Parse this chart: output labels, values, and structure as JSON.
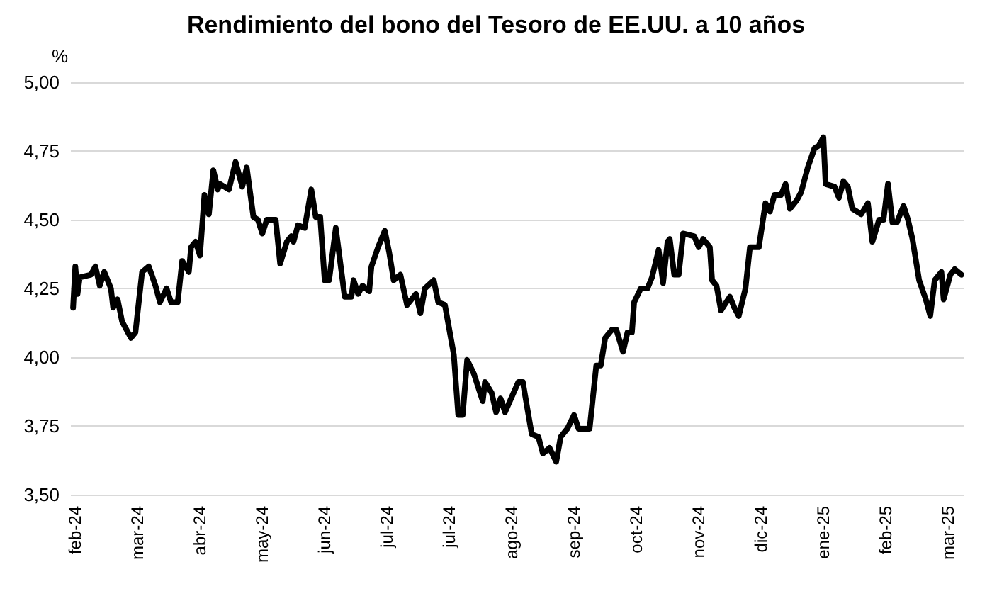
{
  "chart_data": {
    "type": "line",
    "title": "Rendimiento del bono del Tesoro de EE.UU. a 10 años",
    "ylabel": "%",
    "x": [
      "2024-02-12",
      "2024-02-13",
      "2024-02-14",
      "2024-02-15",
      "2024-02-20",
      "2024-02-22",
      "2024-02-24",
      "2024-02-26",
      "2024-02-29",
      "2024-03-01",
      "2024-03-03",
      "2024-03-05",
      "2024-03-09",
      "2024-03-11",
      "2024-03-14",
      "2024-03-17",
      "2024-03-20",
      "2024-03-22",
      "2024-03-25",
      "2024-03-27",
      "2024-03-30",
      "2024-04-01",
      "2024-04-04",
      "2024-04-05",
      "2024-04-07",
      "2024-04-09",
      "2024-04-11",
      "2024-04-13",
      "2024-04-15",
      "2024-04-17",
      "2024-04-18",
      "2024-04-22",
      "2024-04-25",
      "2024-04-28",
      "2024-04-30",
      "2024-05-03",
      "2024-05-05",
      "2024-05-07",
      "2024-05-09",
      "2024-05-13",
      "2024-05-15",
      "2024-05-18",
      "2024-05-20",
      "2024-05-21",
      "2024-05-23",
      "2024-05-26",
      "2024-05-29",
      "2024-05-31",
      "2024-06-02",
      "2024-06-04",
      "2024-06-06",
      "2024-06-09",
      "2024-06-13",
      "2024-06-16",
      "2024-06-17",
      "2024-06-19",
      "2024-06-21",
      "2024-06-24",
      "2024-06-25",
      "2024-06-28",
      "2024-07-01",
      "2024-07-03",
      "2024-07-05",
      "2024-07-08",
      "2024-07-11",
      "2024-07-15",
      "2024-07-17",
      "2024-07-19",
      "2024-07-23",
      "2024-07-25",
      "2024-07-28",
      "2024-08-01",
      "2024-08-03",
      "2024-08-05",
      "2024-08-07",
      "2024-08-10",
      "2024-08-14",
      "2024-08-15",
      "2024-08-18",
      "2024-08-20",
      "2024-08-22",
      "2024-08-24",
      "2024-08-30",
      "2024-09-01",
      "2024-09-05",
      "2024-09-08",
      "2024-09-10",
      "2024-09-13",
      "2024-09-16",
      "2024-09-18",
      "2024-09-21",
      "2024-09-24",
      "2024-09-26",
      "2024-10-01",
      "2024-10-04",
      "2024-10-06",
      "2024-10-08",
      "2024-10-11",
      "2024-10-13",
      "2024-10-16",
      "2024-10-18",
      "2024-10-20",
      "2024-10-21",
      "2024-10-24",
      "2024-10-27",
      "2024-10-29",
      "2024-11-01",
      "2024-11-03",
      "2024-11-05",
      "2024-11-06",
      "2024-11-08",
      "2024-11-10",
      "2024-11-12",
      "2024-11-17",
      "2024-11-19",
      "2024-11-21",
      "2024-11-24",
      "2024-11-25",
      "2024-11-27",
      "2024-11-29",
      "2024-12-03",
      "2024-12-05",
      "2024-12-07",
      "2024-12-10",
      "2024-12-12",
      "2024-12-16",
      "2024-12-19",
      "2024-12-21",
      "2024-12-23",
      "2024-12-26",
      "2024-12-28",
      "2024-12-30",
      "2025-01-02",
      "2025-01-04",
      "2025-01-07",
      "2025-01-10",
      "2025-01-12",
      "2025-01-14",
      "2025-01-15",
      "2025-01-19",
      "2025-01-21",
      "2025-01-23",
      "2025-01-25",
      "2025-01-27",
      "2025-01-31",
      "2025-02-03",
      "2025-02-05",
      "2025-02-08",
      "2025-02-10",
      "2025-02-12",
      "2025-02-14",
      "2025-02-16",
      "2025-02-19",
      "2025-02-21",
      "2025-02-23",
      "2025-02-26",
      "2025-03-01",
      "2025-03-03",
      "2025-03-05",
      "2025-03-08",
      "2025-03-09",
      "2025-03-12",
      "2025-03-14",
      "2025-03-17"
    ],
    "series": [
      {
        "color": "#000000",
        "values": [
          4.18,
          4.33,
          4.23,
          4.29,
          4.3,
          4.33,
          4.26,
          4.31,
          4.25,
          4.18,
          4.21,
          4.13,
          4.07,
          4.09,
          4.31,
          4.33,
          4.26,
          4.2,
          4.25,
          4.2,
          4.2,
          4.35,
          4.31,
          4.4,
          4.42,
          4.37,
          4.59,
          4.52,
          4.68,
          4.61,
          4.63,
          4.61,
          4.71,
          4.62,
          4.69,
          4.51,
          4.5,
          4.45,
          4.5,
          4.5,
          4.34,
          4.42,
          4.44,
          4.42,
          4.48,
          4.47,
          4.61,
          4.51,
          4.51,
          4.28,
          4.28,
          4.47,
          4.22,
          4.22,
          4.28,
          4.23,
          4.26,
          4.24,
          4.33,
          4.4,
          4.46,
          4.38,
          4.28,
          4.3,
          4.19,
          4.23,
          4.16,
          4.25,
          4.28,
          4.2,
          4.19,
          4.01,
          3.79,
          3.79,
          3.99,
          3.94,
          3.84,
          3.91,
          3.87,
          3.8,
          3.85,
          3.8,
          3.91,
          3.91,
          3.72,
          3.71,
          3.65,
          3.67,
          3.62,
          3.71,
          3.74,
          3.79,
          3.74,
          3.74,
          3.97,
          3.97,
          4.07,
          4.1,
          4.1,
          4.02,
          4.09,
          4.09,
          4.2,
          4.25,
          4.25,
          4.29,
          4.39,
          4.27,
          4.42,
          4.43,
          4.3,
          4.3,
          4.45,
          4.44,
          4.4,
          4.43,
          4.4,
          4.28,
          4.26,
          4.17,
          4.22,
          4.18,
          4.15,
          4.25,
          4.4,
          4.4,
          4.56,
          4.53,
          4.59,
          4.59,
          4.63,
          4.54,
          4.57,
          4.6,
          4.69,
          4.76,
          4.77,
          4.8,
          4.63,
          4.62,
          4.58,
          4.64,
          4.62,
          4.54,
          4.52,
          4.56,
          4.42,
          4.5,
          4.5,
          4.63,
          4.49,
          4.49,
          4.55,
          4.5,
          4.43,
          4.28,
          4.21,
          4.15,
          4.28,
          4.31,
          4.21,
          4.3,
          4.32,
          4.3
        ]
      }
    ],
    "xlim": [
      "2024-02-11",
      "2025-03-18"
    ],
    "xticks": [
      {
        "value": "2024-02-13",
        "label": "feb-24"
      },
      {
        "value": "2024-03-12",
        "label": "mar-24"
      },
      {
        "value": "2024-04-09",
        "label": "abr-24"
      },
      {
        "value": "2024-05-07",
        "label": "may-24"
      },
      {
        "value": "2024-06-04",
        "label": "jun-24"
      },
      {
        "value": "2024-07-02",
        "label": "jul-24"
      },
      {
        "value": "2024-07-30",
        "label": "jul-24"
      },
      {
        "value": "2024-08-27",
        "label": "ago-24"
      },
      {
        "value": "2024-09-24",
        "label": "sep-24"
      },
      {
        "value": "2024-10-22",
        "label": "oct-24"
      },
      {
        "value": "2024-11-19",
        "label": "nov-24"
      },
      {
        "value": "2024-12-17",
        "label": "dic-24"
      },
      {
        "value": "2025-01-14",
        "label": "ene-25"
      },
      {
        "value": "2025-02-11",
        "label": "feb-25"
      },
      {
        "value": "2025-03-11",
        "label": "mar-25"
      }
    ],
    "ylim": [
      3.5,
      5
    ],
    "yticks": [
      {
        "value": 3.5,
        "label": "3,50"
      },
      {
        "value": 3.75,
        "label": "3,75"
      },
      {
        "value": 4,
        "label": "4,00"
      },
      {
        "value": 4.25,
        "label": "4,25"
      },
      {
        "value": 4.5,
        "label": "4,50"
      },
      {
        "value": 4.75,
        "label": "4,75"
      },
      {
        "value": 5,
        "label": "5,00"
      }
    ],
    "grid": "y",
    "marker": "none",
    "line_style": "solid"
  }
}
